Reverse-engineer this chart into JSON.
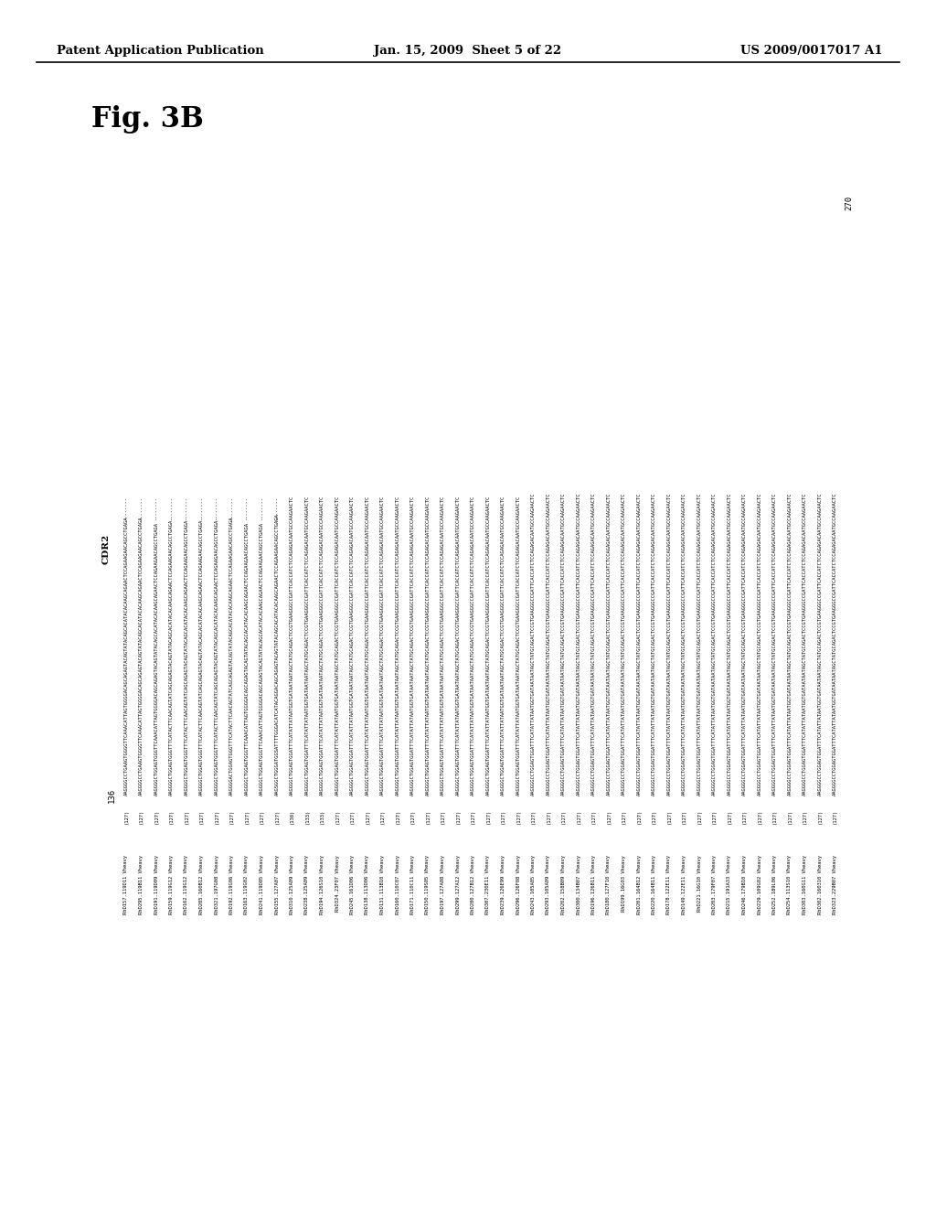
{
  "page_header_left": "Patent Application Publication",
  "page_header_center": "Jan. 15, 2009  Sheet 5 of 22",
  "page_header_right": "US 2009/0017017 A1",
  "figure_label": "Fig. 3B",
  "cdr_label": "CDR2",
  "top_number": "270",
  "left_number": "136",
  "background_color": "#ffffff",
  "sequences": [
    {
      "name": "RhD157.119D11 Vheavy",
      "start": "(127)",
      "seq": "AAGGGGCCTGAAGTGGGGTTCAAACATTAGTGGGGACAGCAGAGTACAGTATACAGCACATACACAAGCAGAACTCCAGAAGAACAGCCTGAGA"
    },
    {
      "name": "RhD295.119B11 Vheavy",
      "start": "(127)",
      "seq": "AAGGGGCCTGAAGTGGGGTTCAAACATTAGTGGGGACAGCAGAGTACAGTATACAGCACATACACAAGCAGAACTCCAGAAGAACAGCCTGAGA"
    },
    {
      "name": "RhD191.119D09 Vheavy",
      "start": "(127)",
      "seq": "AAGGGGCTGGAGTGGGTTCAAACATTAGTGGGGACAGCAGAGTACAGTATACAGCACATACACAAGCAGAACTCCAGAAGAACAGCCTGAGA"
    },
    {
      "name": "RhD159.119G12 Vheavy",
      "start": "(127)",
      "seq": "AAGGGGCTGGAGTGGGTTTCATACTTCAACAGTATCAGCAGAGTACAGTATACAGCACATACACAAGCAGAACTCCAGAAGAACAGCCTGAGA"
    },
    {
      "name": "RhD162.119G12 Vheavy",
      "start": "(127)",
      "seq": "AAGGGGCTGGAGTGGGTTTCATACTTCAACAGTATCAGCAGAGTACAGTATACAGCACATACACAAGCAGAACTCCAGAAGAACAGCCTGAGA"
    },
    {
      "name": "RhD205.160B12 Vheavy",
      "start": "(127)",
      "seq": "AAGGGGCTGGAGTGGGTTTCATACTTCAACAGTATCAGCAGAGTACAGTATACAGCACATACACAAGCAGAACTCCAGAAGAACAGCCTGAGA"
    },
    {
      "name": "RhD321.197G08 Vheavy",
      "start": "(127)",
      "seq": "AAGGGGCTGGAGTGGGTTTCATACTTCAACAGTATCAGCAGAGTACAGTATACAGCACATACACAAGCAGAACTCCAGAAGAACAGCCTGAGA"
    },
    {
      "name": "RhD192.119G06 Vheavy",
      "start": "(127)",
      "seq": "AAGGGGACTGGAGTGGGTTTCATACTTCAACAGTATCAGCAGAGTACAGTATACAGCACATACACAAGCAGAACTCCAGAAGAACAGCCTGAGA"
    },
    {
      "name": "RhD163.119G02 Vheavy",
      "start": "(127)",
      "seq": "AAGGGGCTGGAGTGGGTTCAAACATTAGTGGGGACAGCAGAGTACAGTATACAGCACATACACAAGCAGAACTCCAGAAGAACAGCCTGAGA"
    },
    {
      "name": "RhD241.119D05 Vheavy",
      "start": "(127)",
      "seq": "AAGGGGCTGGAGTGGGTTCAAACATTAGTGGGGACAGCAGAGTACAGTATACAGCACATACACAAGCAGAACTCCAGAAGAACAGCCTGAGA"
    },
    {
      "name": "RhD155.127A07 Vheavy",
      "start": "(127)",
      "seq": "AAGSGGCTGGGATGGSATTTTGGGACATCATACAGGACAGCAGAGTACAGTATACAGCACATACACAAGCAGAACTCCAGAAGAACAGCCTGAGA"
    },
    {
      "name": "RhD310.125A09 Vheavy",
      "start": "(130)",
      "seq": "AAGGGGCTGGAGTGGATTTCATATTATAATGGTGATAATAATAGCTATGCAGACTCCGTGAAGGGCCGATTCACCATCTCCAGAGACAATGCCAAGAACTC"
    },
    {
      "name": "RhD238.125A09 Vheavy",
      "start": "(133)",
      "seq": "AAGGGGCTGGAGTGGATTTCATATTATAATGGTGATAATAATAGCTATGCAGACTCCGTGAAGGGCCGATTCACCATCTCCAGAGACAATGCCAAGAACTC"
    },
    {
      "name": "RhD194.126S10 Vheavy",
      "start": "(133)",
      "seq": "AAGGGGCTGGAGTGGATTTCATATTATAATGGTGATAATAATAGCTATGCAGACTCCGTGAAGGGCCGATTCACCATCTCCAGAGACAATGCCAAGAACTC"
    },
    {
      "name": "RhD324.23F07 Vheavy",
      "start": "(127)",
      "seq": "AAGGGGCTGGAGTGGATTTCATATTATAATGGTGATAATAATAGCTATGCAGACTCCGTGAAGGGCCGATTCACCATCTCCAGAGACAATGCCAAGAACTC"
    },
    {
      "name": "RhD245.161D06 Vheavy",
      "start": "(127)",
      "seq": "AAGGGGCTGGAGTGGATTTCATATTATAATGGTGATAATAATAGCTATGCAGACTCCGTGAAGGGCCGATTCACCATCTCCAGAGACAATGCCAAGAACTC"
    },
    {
      "name": "RhD138.113D06 Vheavy",
      "start": "(127)",
      "seq": "AAGGGGCTGGAGTGGATTTCATATTATAATGGTGATAATAATAGCTATGCAGACTCCGTGAAGGGCCGATTCACCATCTCCAGAGACAATGCCAAGAACTC"
    },
    {
      "name": "RhD131.113B10 Vheavy",
      "start": "(127)",
      "seq": "AAGGGGCTGGAGTGGATTTCATATTATAATGGTGATAATAATAGCTATGCAGACTCCGTGAAGGGCCGATTCACCATCTCCAGAGACAATGCCAAGAACTC"
    },
    {
      "name": "RhD160.110C07 Vheavy",
      "start": "(127)",
      "seq": "AAGGGGCTGGAGTGGATTTCATATTATAATGGTGATAATAATAGCTATGCAGACTCCGTGAAGGGCCGATTCACCATCTCCAGAGACAATGCCAAGAACTC"
    },
    {
      "name": "RhD171.110C11 Vheavy",
      "start": "(127)",
      "seq": "AAGGGGCTGGAGTGGATTTCATATTATAATGGTGATAATAATAGCTATGCAGACTCCGTGAAGGGCCGATTCACCATCTCCAGAGACAATGCCAAGAACTC"
    },
    {
      "name": "RhD150.119S05 Vheavy",
      "start": "(127)",
      "seq": "AAGGGGCTGGAGTGGATTTCATATTATAATGGTGATAATAATAGCTATGCAGACTCCGTGAAGGGCCGATTCACCATCTCCAGAGACAATGCCAAGAACTC"
    },
    {
      "name": "RhD197.127A08 Vheavy",
      "start": "(127)",
      "seq": "AAGGGGCTGGAGTGGATTTCATATTATAATGGTGATAATAATAGCTATGCAGACTCCGTGAAGGGCCGATTCACCATCTCCAGAGACAATGCCAAGAACTC"
    },
    {
      "name": "RhD299.127A12 Vheavy",
      "start": "(127)",
      "seq": "AAGGGGCTGGAGTGGATTTCATATTATAATGGTGATAATAATAGCTATGCAGACTCCGTGAAGGGCCGATTCACCATCTCCAGAGACAATGCCAAGAACTC"
    },
    {
      "name": "RhD280.127B12 Vheavy",
      "start": "(127)",
      "seq": "AAGGGGCTGGAGTGGATTTCATATTATAATGGTGATAATAATAGCTATGCAGACTCCGTGAAGGGCCGATTCACCATCTCCAGAGACAATGCCAAGAACTC"
    },
    {
      "name": "RhD307.230E11 Vheavy",
      "start": "(127)",
      "seq": "AAGGGGCTGGAGTGGATTTCATATTATAATGGTGATAATAATAGCTATGCAGACTCCGTGAAGGGCCGATTCACCATCTCCAGAGACAATGCCAAGAACTC"
    },
    {
      "name": "RhD239.126E99 Vheavy",
      "start": "(127)",
      "seq": "AAGGGGCTGGAGTGGATTTCATATTATAATGGTGATAATAATAGCTATGCAGACTCCGTGAAGGGCCGATTCACCATCTCCAGAGACAATGCCAAGAACTC"
    },
    {
      "name": "RhD296.126F08 Vheavy",
      "start": "(127)",
      "seq": "AAGGGGCTGGAGTGGATTTCATATTATAATGGTGATAATAATAGCTATGCAGACTCCGTGAAGGGCCGATTCACCATCTCCAGAGACAATGCCAAGAACTC"
    },
    {
      "name": "RhD243.105A05 Vheavy",
      "start": "(127)",
      "seq": "AAGGGGCCTGGAGTGGATTTCATATTATAATGGTGATAATAATAGCTATGCAGACTCCGTGAAGGGCCGATTCACCATCTCCAGAGACAATGCCAAGAACTC"
    },
    {
      "name": "RhD293.105A09 Vheavy",
      "start": "(127)",
      "seq": "AAGGGGCCTGGAGTGGATTTCATATTATAATGGTGATAATAATAGCTATGCAGACTCCGTGAAGGGCCGATTCACCATCTCCAGAGACAATGCCAAGAACTC"
    },
    {
      "name": "RhD202.158B09 Vheavy",
      "start": "(127)",
      "seq": "AAGGGGCCTGGAGTGGATTTCATATTATAATGGTGATAATAATAGCTATGCAGACTCCGTGAAGGGCCGATTCACCATCTCCAGAGACAATGCCAAGAACTC"
    },
    {
      "name": "RhD300.134B07 Vheavy",
      "start": "(127)",
      "seq": "AAGGGGCCTGGAGTGGATTTCATATTATAATGGTGATAATAATAGCTATGCAGACTCCGTGAAGGGCCGATTCACCATCTCCAGAGACAATGCCAAGAACTC"
    },
    {
      "name": "RhD196.126B11 Vheavy",
      "start": "(127)",
      "seq": "AAGGGGCCTGGAGTGGATTTCATATTATAATGGTGATAATAATAGCTATGCAGACTCCGTGAAGGGCCGATTCACCATCTCCAGAGACAATGCCAAGAACTC"
    },
    {
      "name": "RhD180.127F10 Vheavy",
      "start": "(127)",
      "seq": "AAGGGGCCTGGAGTGGATTTCATATTATAATGGTGATAATAATAGCTATGCAGACTCCGTGAAGGGCCGATTCACCATCTCCAGAGACAATGCCAAGAACTC"
    },
    {
      "name": "RhD199.16G03 Vheavy",
      "start": "(127)",
      "seq": "AAGGGGCCTGGAGTGGATTTCATATTATAATGGTGATAATAATAGCTATGCAGACTCCGTGAAGGGCCGATTCACCATCTCCAGAGACAATGCCAAGAACTC"
    },
    {
      "name": "RhD201.164B12 Vheavy",
      "start": "(127)",
      "seq": "AAGGGGCCTGGAGTGGATTTCATATTATAATGGTGATAATAATAGCTATGCAGACTCCGTGAAGGGCCGATTCACCATCTCCAGAGACAATGCCAAGAACTC"
    },
    {
      "name": "RhD220.164B11 Vheavy",
      "start": "(127)",
      "seq": "AAGGGGCCTGGAGTGGATTTCATATTATAATGGTGATAATAATAGCTATGCAGACTCCGTGAAGGGCCGATTCACCATCTCCAGAGACAATGCCAAGAACTC"
    },
    {
      "name": "RhD178.122E11 Vheavy",
      "start": "(127)",
      "seq": "AAGGGGCCTGGAGTGGATTTCATATTATAATGGTGATAATAATAGCTATGCAGACTCCGTGAAGGGCCGATTCACCATCTCCAGAGACAATGCCAAGAACTC"
    },
    {
      "name": "RhD149.122E11 Vheavy",
      "start": "(127)",
      "seq": "AAGGGGCCTGGAGTGGATTTCATATTATAATGGTGATAATAATAGCTATGCAGACTCCGTGAAGGGCCGATTCACCATCTCCAGAGACAATGCCAAGAACTC"
    },
    {
      "name": "RhD221.16G10 Vheavy",
      "start": "(127)",
      "seq": "AAGGGGCCTGGAGTGGATTTCATATTATAATGGTGATAATAATAGCTATGCAGACTCCGTGAAGGGCCGATTCACCATCTCCAGAGACAATGCCAAGAACTC"
    },
    {
      "name": "RhD203.179F07 Vheavy",
      "start": "(127)",
      "seq": "AAGGGGCCTGGAGTGGATTTCATATTATAATGGTGATAATAATAGCTATGCAGACTCCGTGAAGGGCCGATTCACCATCTCCAGAGACAATGCCAAGAACTC"
    },
    {
      "name": "RhD215.191A33 Vheavy",
      "start": "(127)",
      "seq": "AAGGGGCCTGGAGTGGATTTCATATTATAATGGTGATAATAATAGCTATGCAGACTCCGTGAAGGGCCGATTCACCATCTCCAGAGACAATGCCAAGAACTC"
    },
    {
      "name": "RhD246.179B10 Vheavy",
      "start": "(127)",
      "seq": "AAGGGGCCTGGAGTGGATTTCATATTATAATGGTGATAATAATAGCTATGCAGACTCCGTGAAGGGCCGATTCACCATCTCCAGAGACAATGCCAAGAACTC"
    },
    {
      "name": "RhD229.109G02 Vheavy",
      "start": "(127)",
      "seq": "AAGGGGCCTGGAGTGGATTTCATATTATAATGGTGATAATAATAGCTATGCAGACTCCGTGAAGGGCCGATTCACCATCTCCAGAGACAATGCCAAGAACTC"
    },
    {
      "name": "RhD252.189L06 Vheavy",
      "start": "(127)",
      "seq": "AAGGGGCCTGGAGTGGATTTCATATTATAATGGTGATAATAATAGCTATGCAGACTCCGTGAAGGGCCGATTCACCATCTCCAGAGACAATGCCAAGAACTC"
    },
    {
      "name": "RhD254.113S10 Vheavy",
      "start": "(127)",
      "seq": "AAGGGGCCTGGAGTGGATTTCATATTATAATGGTGATAATAATAGCTATGCAGACTCCGTGAAGGGCCGATTCACCATCTCCAGAGACAATGCCAAGAACTC"
    },
    {
      "name": "RhD303.160G11 Vheavy",
      "start": "(127)",
      "seq": "AAGGGGCCTGGAGTGGATTTCATATTATAATGGTGATAATAATAGCTATGCAGACTCCGTGAAGGGCCGATTCACCATCTCCAGAGACAATGCCAAGAACTC"
    },
    {
      "name": "RhD302.160310 Vheavy",
      "start": "(127)",
      "seq": "AAGGGGCCTGGAGTGGATTTCATATTATAATGGTGATAATAATAGCTATGCAGACTCCGTGAAGGGCCGATTCACCATCTCCAGAGACAATGCCAAGAACTC"
    },
    {
      "name": "RhD323.229B07 Vheavy",
      "start": "(127)",
      "seq": "AAGGGGCCTGGAGTGGATTTCATATTATAATGGTGATAATAATAGCTATGCAGACTCCGTGAAGGGCCGATTCACCATCTCCAGAGACAATGCCAAGAACTC"
    }
  ]
}
